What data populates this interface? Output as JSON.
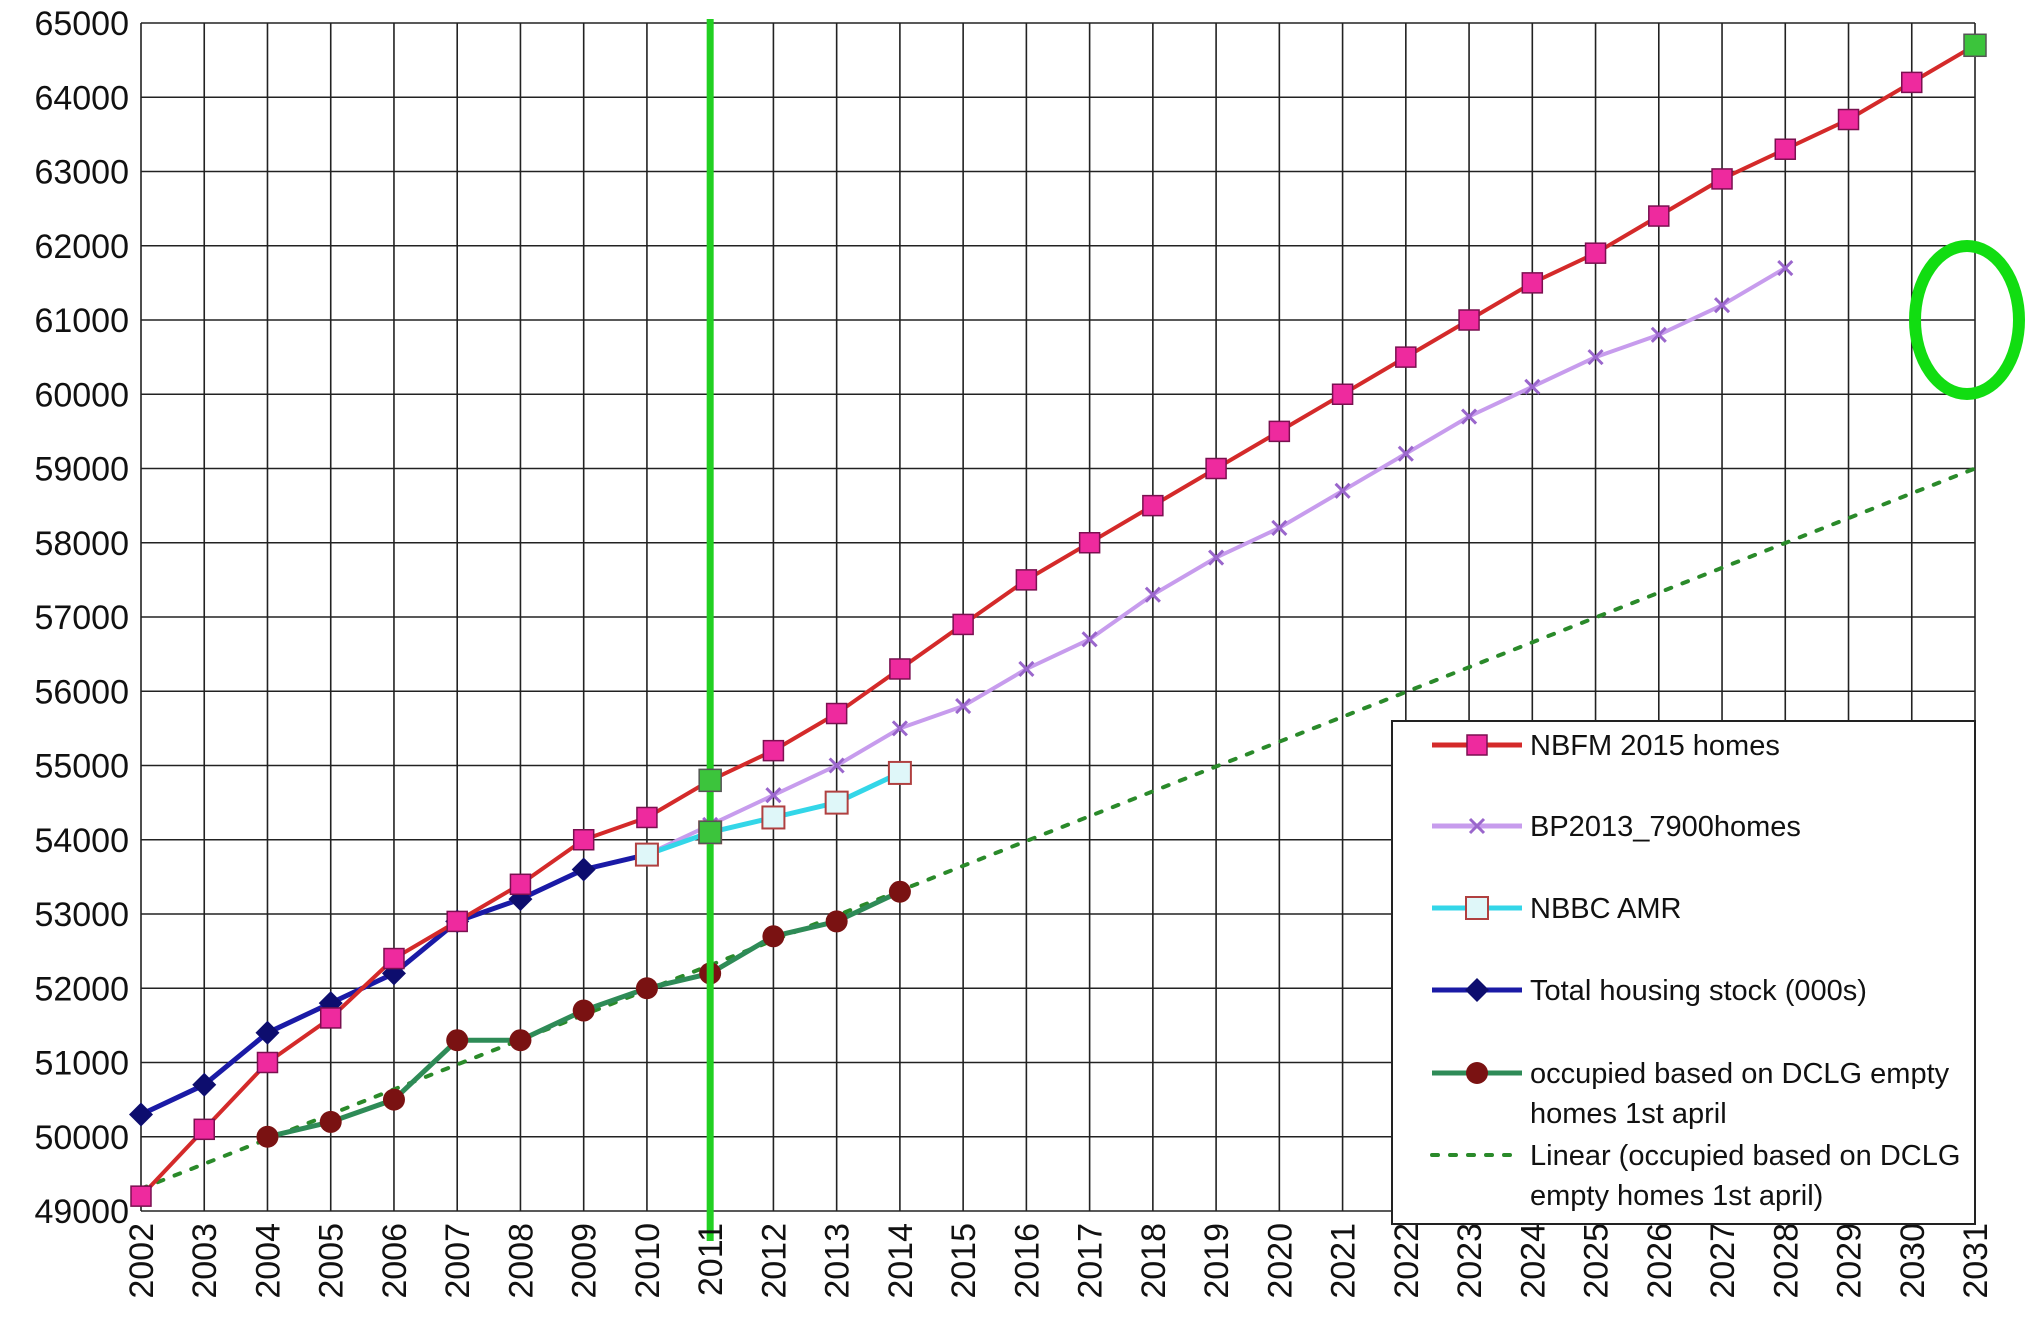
{
  "chart_data": {
    "type": "line",
    "ylim": [
      49000,
      65000
    ],
    "yticks": [
      "49000",
      "50000",
      "51000",
      "52000",
      "53000",
      "54000",
      "55000",
      "56000",
      "57000",
      "58000",
      "59000",
      "60000",
      "61000",
      "62000",
      "63000",
      "64000",
      "65000"
    ],
    "categories": [
      "2002",
      "2003",
      "2004",
      "2005",
      "2006",
      "2007",
      "2008",
      "2009",
      "2010",
      "2011",
      "2012",
      "2013",
      "2014",
      "2015",
      "2016",
      "2017",
      "2018",
      "2019",
      "2020",
      "2021",
      "2022",
      "2023",
      "2024",
      "2025",
      "2026",
      "2027",
      "2028",
      "2029",
      "2030",
      "2031"
    ],
    "grid": true,
    "legend_position": "bottom-right",
    "series": [
      {
        "name": "NBFM 2015 homes",
        "color": "#d42a2a",
        "marker": "square",
        "marker_color": "#ee2a9e",
        "x": [
          "2002",
          "2003",
          "2004",
          "2005",
          "2006",
          "2007",
          "2008",
          "2009",
          "2010",
          "2011",
          "2012",
          "2013",
          "2014",
          "2015",
          "2016",
          "2017",
          "2018",
          "2019",
          "2020",
          "2021",
          "2022",
          "2023",
          "2024",
          "2025",
          "2026",
          "2027",
          "2028",
          "2029",
          "2030",
          "2031"
        ],
        "values": [
          49200,
          50100,
          51000,
          51600,
          52400,
          52900,
          53400,
          54000,
          54300,
          54800,
          55200,
          55700,
          56300,
          56900,
          57500,
          58000,
          58500,
          59000,
          59500,
          60000,
          60500,
          61000,
          61500,
          61900,
          62400,
          62900,
          63300,
          63700,
          64200,
          64700
        ]
      },
      {
        "name": "BP2013_7900homes",
        "color": "#c79ced",
        "marker": "x",
        "marker_color": "#9a66cc",
        "x": [
          "2010",
          "2011",
          "2012",
          "2013",
          "2014",
          "2015",
          "2016",
          "2017",
          "2018",
          "2019",
          "2020",
          "2021",
          "2022",
          "2023",
          "2024",
          "2025",
          "2026",
          "2027",
          "2028"
        ],
        "values": [
          53800,
          54200,
          54600,
          55000,
          55500,
          55800,
          56300,
          56700,
          57300,
          57800,
          58200,
          58700,
          59200,
          59700,
          60100,
          60500,
          60800,
          61200,
          61700
        ]
      },
      {
        "name": "NBBC AMR",
        "color": "#33d6e8",
        "marker": "square-open",
        "marker_color": "#dff7f9",
        "x": [
          "2010",
          "2011",
          "2012",
          "2013",
          "2014"
        ],
        "values": [
          53800,
          54100,
          54300,
          54500,
          54900
        ]
      },
      {
        "name": "Total housing stock (000s)",
        "color": "#1a1aa6",
        "marker": "diamond",
        "marker_color": "#0d0d6e",
        "x": [
          "2002",
          "2003",
          "2004",
          "2005",
          "2006",
          "2007",
          "2008",
          "2009",
          "2010"
        ],
        "values": [
          50300,
          50700,
          51400,
          51800,
          52200,
          52900,
          53200,
          53600,
          53800
        ]
      },
      {
        "name": "occupied based on DCLG empty homes 1st april",
        "color": "#2e8b57",
        "marker": "circle",
        "marker_color": "#7a1212",
        "x": [
          "2004",
          "2005",
          "2006",
          "2007",
          "2008",
          "2009",
          "2010",
          "2011",
          "2012",
          "2013",
          "2014"
        ],
        "values": [
          50000,
          50200,
          50500,
          51300,
          51300,
          51700,
          52000,
          52200,
          52700,
          52900,
          53300
        ]
      },
      {
        "name": "Linear (occupied based on DCLG empty homes 1st april)",
        "color": "#2a8a2a",
        "dash": "dotted",
        "x": [
          "2002",
          "2031"
        ],
        "values": [
          49300,
          59000
        ]
      }
    ],
    "annotations": {
      "vertical_line_at": "2011",
      "vertical_line_color": "#22d022",
      "highlight_points_color": "#3cc43c",
      "highlight_points": [
        {
          "x": "2011",
          "y": 54800
        },
        {
          "x": "2011",
          "y": 54100
        },
        {
          "x": "2031",
          "y": 64700
        }
      ],
      "ellipse_color": "#11dd11",
      "ellipse_center": {
        "x": "2031",
        "y": 61000
      }
    }
  }
}
